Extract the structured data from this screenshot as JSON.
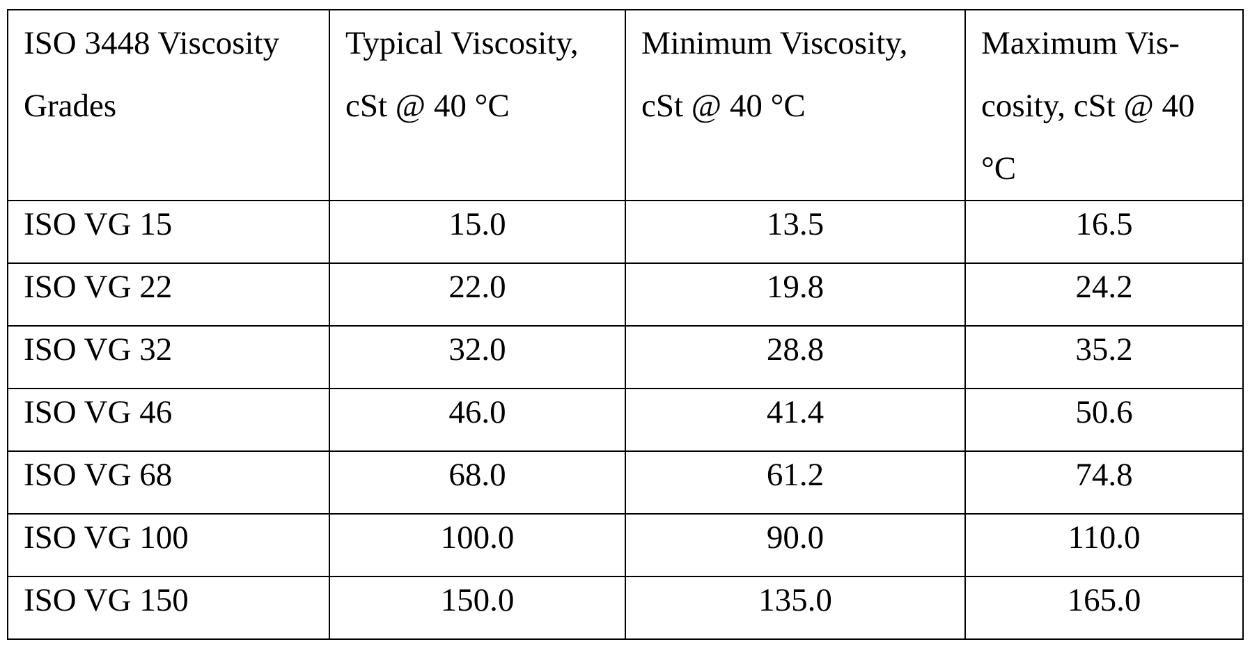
{
  "table": {
    "headers": [
      "ISO 3448 Viscosity\nGrades",
      "Typical Viscosity,\ncSt @ 40 °C",
      "Minimum Viscosity,\ncSt @ 40 °C",
      "Maximum Vis-\ncosity, cSt @ 40\n°C"
    ],
    "rows": [
      [
        "ISO VG 15",
        "15.0",
        "13.5",
        "16.5"
      ],
      [
        "ISO VG 22",
        "22.0",
        "19.8",
        "24.2"
      ],
      [
        "ISO VG 32",
        "32.0",
        "28.8",
        "35.2"
      ],
      [
        "ISO VG 46",
        "46.0",
        "41.4",
        "50.6"
      ],
      [
        "ISO VG 68",
        "68.0",
        "61.2",
        "74.8"
      ],
      [
        "ISO VG 100",
        "100.0",
        "90.0",
        "110.0"
      ],
      [
        "ISO VG 150",
        "150.0",
        "135.0",
        "165.0"
      ]
    ]
  }
}
